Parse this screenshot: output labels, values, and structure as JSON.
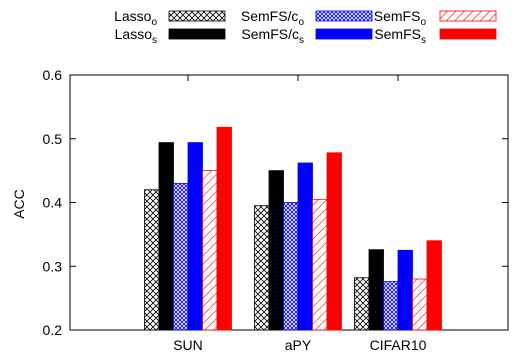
{
  "chart_data": {
    "type": "bar",
    "title": "",
    "xlabel": "",
    "ylabel": "ACC",
    "ylim": [
      0.2,
      0.6
    ],
    "yticks": [
      "0.2",
      "0.3",
      "0.4",
      "0.5",
      "0.6"
    ],
    "grid": false,
    "legend_position": "top",
    "categories": [
      "SUN",
      "aPY",
      "CIFAR10"
    ],
    "series": [
      {
        "name": "Lasso",
        "sub": "o",
        "values": [
          0.42,
          0.395,
          0.282
        ],
        "color": "#000000",
        "pattern": "crosshatch"
      },
      {
        "name": "Lasso",
        "sub": "s",
        "values": [
          0.494,
          0.45,
          0.326
        ],
        "color": "#000000",
        "pattern": "solid"
      },
      {
        "name": "SemFS/c",
        "sub": "o",
        "values": [
          0.43,
          0.4,
          0.276
        ],
        "color": "#0000ff",
        "pattern": "crosshatch"
      },
      {
        "name": "SemFS/c",
        "sub": "s",
        "values": [
          0.494,
          0.462,
          0.325
        ],
        "color": "#0000ff",
        "pattern": "solid"
      },
      {
        "name": "SemFS",
        "sub": "o",
        "values": [
          0.45,
          0.405,
          0.28
        ],
        "color": "#ff0000",
        "pattern": "diagonal"
      },
      {
        "name": "SemFS",
        "sub": "s",
        "values": [
          0.518,
          0.478,
          0.34
        ],
        "color": "#ff0000",
        "pattern": "solid"
      }
    ]
  }
}
